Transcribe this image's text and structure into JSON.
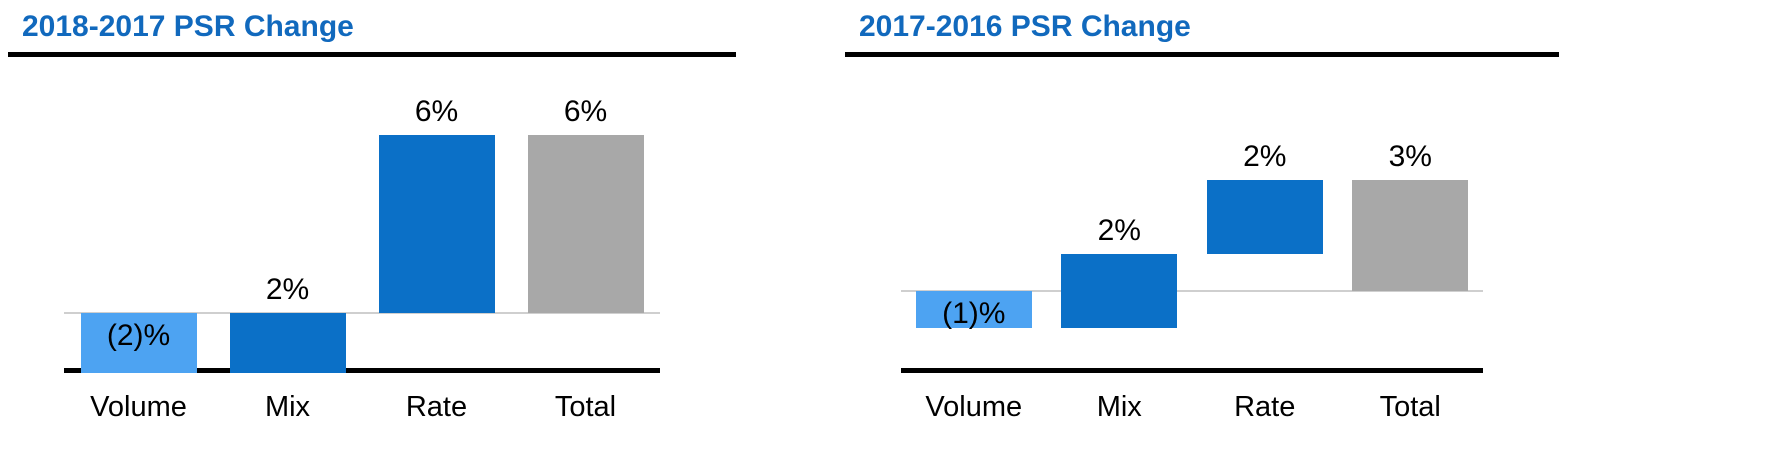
{
  "colors": {
    "title": "#1169bd",
    "light_blue": "#4da3f2",
    "blue": "#0b70c7",
    "gray": "#a8a8a8",
    "zero_line": "#cfcfcf",
    "axis": "#000000",
    "text": "#000000"
  },
  "charts": [
    {
      "title": "2018-2017 PSR Change",
      "chart_data": {
        "type": "bar",
        "subtype": "waterfall",
        "title": "2018-2017 PSR Change",
        "categories": [
          "Volume",
          "Mix",
          "Rate",
          "Total"
        ],
        "values": [
          -2,
          2,
          6,
          6
        ],
        "value_labels": [
          "(2)%",
          "2%",
          "6%",
          "6%"
        ],
        "bar_roles": [
          "delta",
          "delta",
          "delta",
          "total"
        ],
        "bar_colors": [
          "light_blue",
          "blue",
          "blue",
          "gray"
        ],
        "label_inside": [
          true,
          false,
          false,
          false
        ],
        "unit": "%",
        "ylim": [
          -2,
          8.6
        ],
        "grid": false,
        "legend": false
      }
    },
    {
      "title": "2017-2016 PSR Change",
      "chart_data": {
        "type": "bar",
        "subtype": "waterfall",
        "title": "2017-2016 PSR Change",
        "categories": [
          "Volume",
          "Mix",
          "Rate",
          "Total"
        ],
        "values": [
          -1,
          2,
          2,
          3
        ],
        "value_labels": [
          "(1)%",
          "2%",
          "2%",
          "3%"
        ],
        "bar_roles": [
          "delta",
          "delta",
          "delta",
          "total"
        ],
        "bar_colors": [
          "light_blue",
          "blue",
          "blue",
          "gray"
        ],
        "label_inside": [
          true,
          false,
          false,
          false
        ],
        "unit": "%",
        "ylim": [
          -2.2,
          6.3
        ],
        "grid": false,
        "legend": false
      }
    }
  ]
}
